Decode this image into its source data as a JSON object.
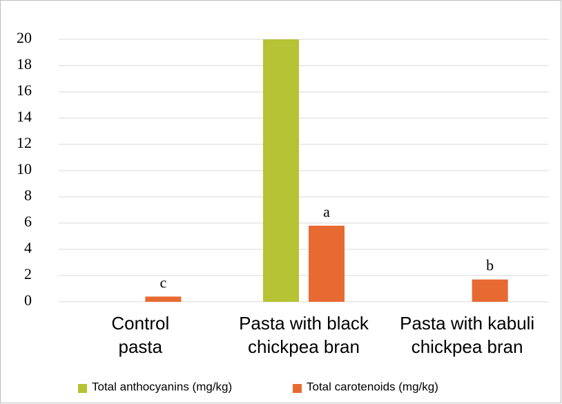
{
  "chart_data": {
    "type": "bar",
    "categories": [
      "Control pasta",
      "Pasta with black chickpea bran",
      "Pasta with kabuli chickpea bran"
    ],
    "series": [
      {
        "name": "Total anthocyanins (mg/kg)",
        "color": "#b5c334",
        "values": [
          0,
          20,
          0
        ]
      },
      {
        "name": "Total carotenoids (mg/kg)",
        "color": "#e86a33",
        "values": [
          0.4,
          5.8,
          1.7
        ],
        "value_labels": [
          "c",
          "a",
          "b"
        ]
      }
    ],
    "ylim": [
      0,
      20
    ],
    "yticks": [
      0,
      2,
      4,
      6,
      8,
      10,
      12,
      14,
      16,
      18,
      20
    ],
    "grid": true,
    "legend": "bottom"
  }
}
